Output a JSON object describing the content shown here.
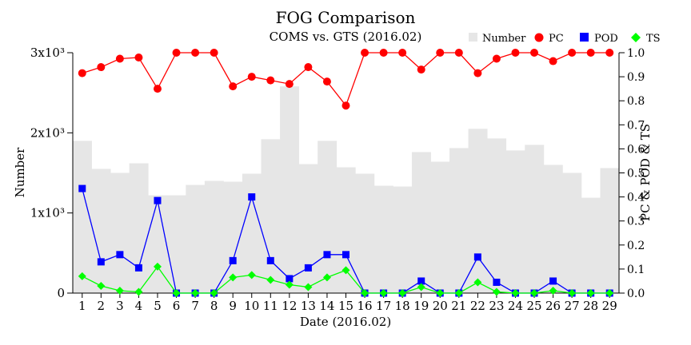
{
  "chart_data": {
    "type": "bar",
    "title": "FOG Comparison",
    "subtitle": "COMS vs. GTS (2016.02)",
    "xlabel": "Date (2016.02)",
    "ylabel": "Number",
    "y2label": "PC & POD & TS",
    "categories": [
      "1",
      "2",
      "3",
      "4",
      "5",
      "6",
      "7",
      "8",
      "9",
      "10",
      "11",
      "12",
      "13",
      "14",
      "15",
      "16",
      "17",
      "18",
      "19",
      "20",
      "21",
      "22",
      "23",
      "24",
      "25",
      "26",
      "27",
      "28",
      "29"
    ],
    "ylim": [
      0,
      3000
    ],
    "y2lim": [
      0,
      1.0
    ],
    "yticks": [
      {
        "value": 0,
        "label": "0"
      },
      {
        "value": 1000,
        "label": "1x10³"
      },
      {
        "value": 2000,
        "label": "2x10³"
      },
      {
        "value": 3000,
        "label": "3x10³"
      }
    ],
    "y2ticks": [
      "0.0",
      "0.1",
      "0.2",
      "0.3",
      "0.4",
      "0.5",
      "0.6",
      "0.7",
      "0.8",
      "0.9",
      "1.0"
    ],
    "legend_position": "top-right",
    "grid": false,
    "series": [
      {
        "name": "Number",
        "axis": "left",
        "kind": "bar",
        "color": "#e6e6e6",
        "values": [
          1900,
          1550,
          1500,
          1620,
          1220,
          1220,
          1350,
          1400,
          1390,
          1490,
          1920,
          2580,
          1610,
          1900,
          1570,
          1490,
          1340,
          1330,
          1760,
          1640,
          1810,
          2050,
          1930,
          1780,
          1850,
          1600,
          1500,
          1190,
          1560
        ]
      },
      {
        "name": "PC",
        "axis": "right",
        "kind": "line",
        "color": "#ff0000",
        "marker": "circle",
        "values": [
          0.915,
          0.94,
          0.975,
          0.98,
          0.85,
          1.0,
          1.0,
          1.0,
          0.86,
          0.9,
          0.885,
          0.87,
          0.94,
          0.88,
          0.78,
          1.0,
          1.0,
          1.0,
          0.93,
          1.0,
          1.0,
          0.915,
          0.975,
          1.0,
          1.0,
          0.965,
          1.0,
          1.0,
          1.0
        ]
      },
      {
        "name": "POD",
        "axis": "right",
        "kind": "line",
        "color": "#0000ff",
        "marker": "square",
        "values": [
          0.435,
          0.13,
          0.16,
          0.105,
          0.385,
          0.0,
          0.0,
          0.0,
          0.135,
          0.4,
          0.135,
          0.06,
          0.105,
          0.16,
          0.16,
          0.0,
          0.0,
          0.0,
          0.05,
          0.0,
          0.0,
          0.15,
          0.045,
          0.0,
          0.0,
          0.05,
          0.0,
          0.0,
          0.0
        ]
      },
      {
        "name": "TS",
        "axis": "right",
        "kind": "line",
        "color": "#00ff00",
        "marker": "diamond",
        "values": [
          0.07,
          0.03,
          0.01,
          0.005,
          0.11,
          0.0,
          0.0,
          0.0,
          0.065,
          0.075,
          0.055,
          0.035,
          0.025,
          0.065,
          0.095,
          0.0,
          0.0,
          0.0,
          0.025,
          0.0,
          0.0,
          0.045,
          0.005,
          0.0,
          0.0,
          0.01,
          0.0,
          0.0,
          0.0
        ]
      }
    ]
  }
}
